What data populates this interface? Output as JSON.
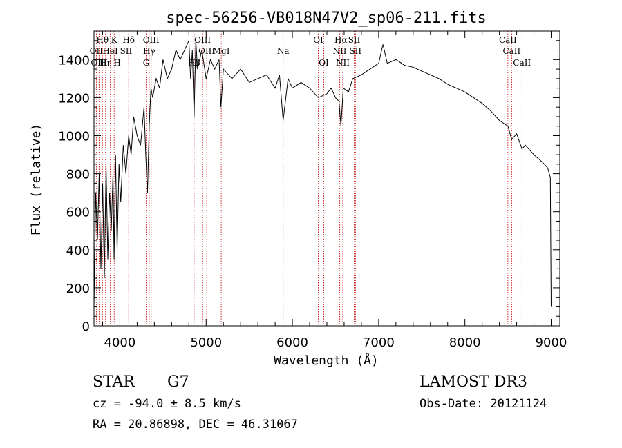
{
  "chart_data": {
    "type": "line",
    "title": "spec-56256-VB018N47V2_sp06-211.fits",
    "xlabel": "Wavelength (Å)",
    "ylabel": "Flux (relative)",
    "xlim": [
      3700,
      9100
    ],
    "ylim": [
      0,
      1550
    ],
    "xticks": [
      4000,
      5000,
      6000,
      7000,
      8000,
      9000
    ],
    "yticks": [
      0,
      200,
      400,
      600,
      800,
      1000,
      1200,
      1400
    ],
    "line_color": "#c00000",
    "series": [
      {
        "name": "spectrum",
        "x": [
          3700,
          3720,
          3740,
          3760,
          3780,
          3800,
          3820,
          3840,
          3860,
          3880,
          3900,
          3920,
          3933,
          3950,
          3968,
          3990,
          4010,
          4040,
          4070,
          4102,
          4130,
          4160,
          4200,
          4240,
          4280,
          4300,
          4320,
          4340,
          4360,
          4380,
          4420,
          4460,
          4500,
          4550,
          4600,
          4650,
          4700,
          4750,
          4800,
          4820,
          4840,
          4861,
          4880,
          4900,
          4950,
          5000,
          5050,
          5100,
          5150,
          5172,
          5200,
          5300,
          5400,
          5500,
          5600,
          5700,
          5800,
          5850,
          5893,
          5950,
          6000,
          6100,
          6200,
          6300,
          6400,
          6450,
          6500,
          6540,
          6563,
          6590,
          6650,
          6700,
          6800,
          6900,
          7000,
          7050,
          7100,
          7200,
          7300,
          7400,
          7500,
          7600,
          7700,
          7800,
          7900,
          8000,
          8100,
          8200,
          8300,
          8400,
          8498,
          8542,
          8600,
          8662,
          8700,
          8800,
          8900,
          8960,
          8990,
          9000
        ],
        "values": [
          100,
          700,
          450,
          800,
          300,
          750,
          250,
          850,
          350,
          700,
          500,
          800,
          350,
          900,
          400,
          850,
          650,
          950,
          800,
          1000,
          900,
          1100,
          1000,
          950,
          1150,
          900,
          700,
          1050,
          1250,
          1200,
          1300,
          1250,
          1400,
          1300,
          1350,
          1450,
          1400,
          1450,
          1500,
          1300,
          1450,
          1100,
          1500,
          1350,
          1450,
          1300,
          1400,
          1350,
          1400,
          1150,
          1350,
          1300,
          1350,
          1280,
          1300,
          1320,
          1250,
          1320,
          1080,
          1300,
          1250,
          1280,
          1250,
          1200,
          1220,
          1250,
          1200,
          1180,
          1050,
          1250,
          1230,
          1300,
          1320,
          1350,
          1380,
          1480,
          1380,
          1400,
          1370,
          1360,
          1340,
          1320,
          1300,
          1270,
          1250,
          1230,
          1200,
          1170,
          1130,
          1080,
          1050,
          980,
          1010,
          930,
          950,
          900,
          860,
          830,
          780,
          100
        ]
      }
    ],
    "lines": [
      {
        "label": "Hθ",
        "x": 3798
      },
      {
        "label": "OII",
        "x": 3727
      },
      {
        "label": "OIII",
        "x": 3760
      },
      {
        "label": "HeI",
        "x": 3889
      },
      {
        "label": "K",
        "x": 3934
      },
      {
        "label": "Hη",
        "x": 3835
      },
      {
        "label": "H",
        "x": 3969
      },
      {
        "label": "SII",
        "x": 4072
      },
      {
        "label": "Hδ",
        "x": 4102
      },
      {
        "label": "OIII",
        "x": 4363
      },
      {
        "label": "Hγ",
        "x": 4340
      },
      {
        "label": "G",
        "x": 4305
      },
      {
        "label": "Hβ",
        "x": 4861
      },
      {
        "label": "OIII",
        "x": 4959
      },
      {
        "label": "OIII",
        "x": 5007
      },
      {
        "label": "MgI",
        "x": 5175
      },
      {
        "label": "Na",
        "x": 5893
      },
      {
        "label": "OI",
        "x": 6300
      },
      {
        "label": "OI",
        "x": 6364
      },
      {
        "label": "Hα",
        "x": 6563
      },
      {
        "label": "NII",
        "x": 6548
      },
      {
        "label": "NII",
        "x": 6584
      },
      {
        "label": "SII",
        "x": 6717
      },
      {
        "label": "SII",
        "x": 6731
      },
      {
        "label": "CaII",
        "x": 8498
      },
      {
        "label": "CaII",
        "x": 8542
      },
      {
        "label": "CaII",
        "x": 8662
      }
    ],
    "line_label_rows": {
      "Hθ": 0,
      "OII": 1,
      "OIII_3760": 2,
      "HeI": 1,
      "K": 0,
      "Hη": 2,
      "H": 2,
      "SII_4072": 1,
      "Hδ": 0
    }
  },
  "labels": {
    "object_class": "STAR",
    "subclass": "G7",
    "survey": "LAMOST DR3",
    "redshift": "cz = -94.0 ± 8.5 km/s",
    "obs_date": "Obs-Date: 20121124",
    "coords": "RA =  20.86898, DEC =  46.31067"
  }
}
